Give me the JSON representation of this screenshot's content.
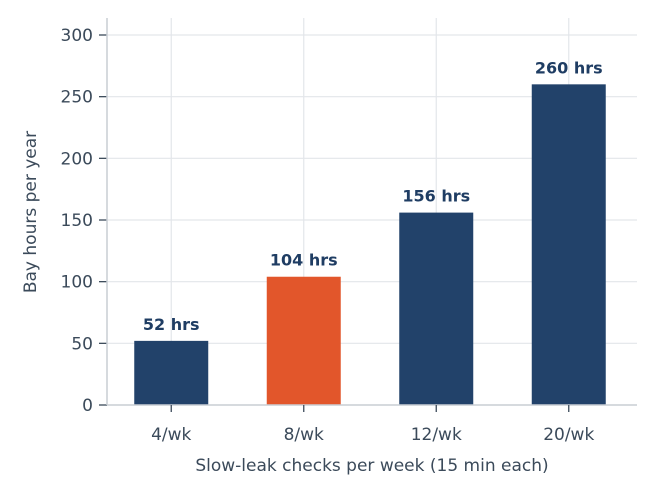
{
  "chart_data": {
    "type": "bar",
    "categories": [
      "4/wk",
      "8/wk",
      "12/wk",
      "20/wk"
    ],
    "values": [
      52,
      104,
      156,
      260
    ],
    "data_labels": [
      "52 hrs",
      "104 hrs",
      "156 hrs",
      "260 hrs"
    ],
    "highlight_index": 1,
    "xlabel": "Slow-leak checks per week (15 min each)",
    "ylabel": "Bay hours per year",
    "ylim": [
      0,
      300
    ],
    "yticks": [
      0,
      50,
      100,
      150,
      200,
      250,
      300
    ],
    "grid": true,
    "colors": {
      "bar": "#22426a",
      "highlight": "#e2562b",
      "label": "#1f3d63"
    }
  }
}
